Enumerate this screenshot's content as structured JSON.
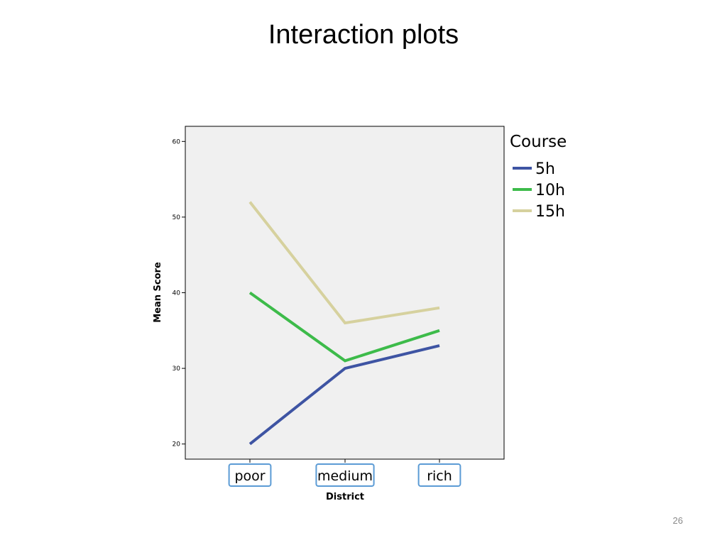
{
  "slide": {
    "title": "Interaction plots",
    "page_number": "26"
  },
  "chart_data": {
    "type": "line",
    "title": "",
    "xlabel": "District",
    "ylabel": "Mean Score",
    "categories": [
      "poor",
      "medium",
      "rich"
    ],
    "ylim": [
      18,
      62
    ],
    "yticks": [
      20,
      30,
      40,
      50,
      60
    ],
    "grid": false,
    "legend": {
      "title": "Course",
      "position": "right"
    },
    "series": [
      {
        "name": "5h",
        "values": [
          20,
          30,
          33
        ],
        "color": "#3e54a3"
      },
      {
        "name": "10h",
        "values": [
          40,
          31,
          35
        ],
        "color": "#3dbb4a"
      },
      {
        "name": "15h",
        "values": [
          52,
          36,
          38
        ],
        "color": "#d6d19e"
      }
    ],
    "plot_background": "#f0f0f0",
    "category_box_color": "#5b9bd5"
  }
}
